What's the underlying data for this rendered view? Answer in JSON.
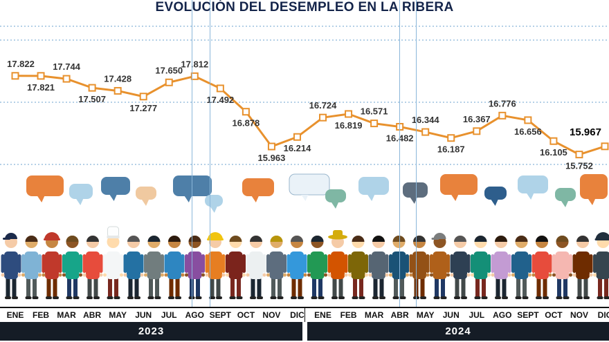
{
  "title": "EVOLUCIÓN DEL DESEMPLEO EN LA RIBERA",
  "colors": {
    "accent_orange": "#E8912D",
    "navy_title": "#14244A",
    "year_band_bg": "#151C26",
    "grid_blue": "#6AA0CC",
    "vline_blue": "#8AB6D9",
    "label_text": "#333333"
  },
  "chart_data": {
    "type": "line",
    "title": "EVOLUCIÓN DEL DESEMPLEO EN LA RIBERA",
    "ylim": [
      15600,
      18000
    ],
    "line_color": "#E8912D",
    "marker": "square-white",
    "grid": "dotted-horizontal",
    "years": [
      {
        "label": "2023",
        "months": 12
      },
      {
        "label": "2024",
        "months": 12
      }
    ],
    "points": [
      {
        "month": "ENE",
        "value": 17822,
        "label": "17.822",
        "label_pos": "above",
        "bold": false
      },
      {
        "month": "FEB",
        "value": 17821,
        "label": "17.821",
        "label_pos": "below",
        "bold": false
      },
      {
        "month": "MAR",
        "value": 17744,
        "label": "17.744",
        "label_pos": "above",
        "bold": false
      },
      {
        "month": "ABR",
        "value": 17507,
        "label": "17.507",
        "label_pos": "below",
        "bold": false
      },
      {
        "month": "MAY",
        "value": 17428,
        "label": "17.428",
        "label_pos": "above",
        "bold": false
      },
      {
        "month": "JUN",
        "value": 17277,
        "label": "17.277",
        "label_pos": "below",
        "bold": false
      },
      {
        "month": "JUL",
        "value": 17650,
        "label": "17.650",
        "label_pos": "above",
        "bold": false
      },
      {
        "month": "AGO",
        "value": 17812,
        "label": "17.812",
        "label_pos": "above",
        "bold": false
      },
      {
        "month": "SEPT",
        "value": 17492,
        "label": "17.492",
        "label_pos": "below",
        "bold": false
      },
      {
        "month": "OCT",
        "value": 16878,
        "label": "16.878",
        "label_pos": "below",
        "bold": false
      },
      {
        "month": "NOV",
        "value": 15963,
        "label": "15.963",
        "label_pos": "below",
        "bold": false
      },
      {
        "month": "DIC",
        "value": 16214,
        "label": "16.214",
        "label_pos": "below",
        "bold": false
      },
      {
        "month": "ENE",
        "value": 16724,
        "label": "16.724",
        "label_pos": "above",
        "bold": false
      },
      {
        "month": "FEB",
        "value": 16819,
        "label": "16.819",
        "label_pos": "below",
        "bold": false
      },
      {
        "month": "MAR",
        "value": 16571,
        "label": "16.571",
        "label_pos": "above",
        "bold": false
      },
      {
        "month": "ABR",
        "value": 16482,
        "label": "16.482",
        "label_pos": "below",
        "bold": false
      },
      {
        "month": "MAY",
        "value": 16344,
        "label": "16.344",
        "label_pos": "above",
        "bold": false
      },
      {
        "month": "JUN",
        "value": 16187,
        "label": "16.187",
        "label_pos": "below",
        "bold": false
      },
      {
        "month": "JUL",
        "value": 16367,
        "label": "16.367",
        "label_pos": "above",
        "bold": false
      },
      {
        "month": "AGO",
        "value": 16776,
        "label": "16.776",
        "label_pos": "above",
        "bold": false
      },
      {
        "month": "SEPT",
        "value": 16656,
        "label": "16.656",
        "label_pos": "below",
        "bold": false
      },
      {
        "month": "OCT",
        "value": 16105,
        "label": "16.105",
        "label_pos": "below",
        "bold": false
      },
      {
        "month": "NOV",
        "value": 15752,
        "label": "15.752",
        "label_pos": "below",
        "bold": false
      },
      {
        "month": "DIC",
        "value": 15967,
        "label": "15.967",
        "label_pos": "above",
        "bold": true
      }
    ]
  },
  "illustration": {
    "description": "crowd-of-workers-with-speech-bubbles",
    "bubble_palette": [
      "#E8823C",
      "#AFD3E8",
      "#4E7FA8",
      "#7FB7A4",
      "#5D6D7E",
      "#F0C9A0",
      "#EAF2F8",
      "#2E5E8C"
    ]
  }
}
